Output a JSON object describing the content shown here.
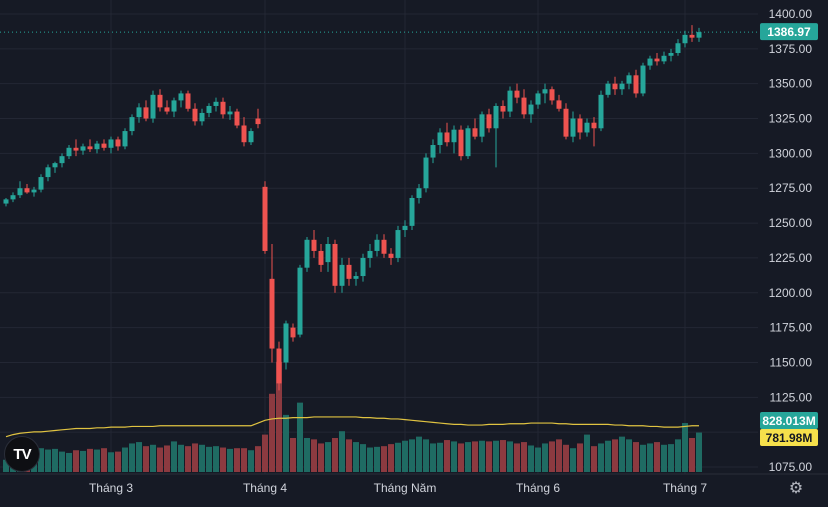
{
  "chart_data": {
    "type": "candlestick",
    "y_ticks": [
      "1400.00",
      "1375.00",
      "1350.00",
      "1325.00",
      "1300.00",
      "1275.00",
      "1250.00",
      "1225.00",
      "1200.00",
      "1175.00",
      "1150.00",
      "1125.00",
      "1100.00",
      "1075.00"
    ],
    "ylim": [
      1070,
      1405
    ],
    "last_price": "1386.97",
    "last_price_value": 1386.97,
    "volume_badge": "828.013M",
    "volume_ma_badge": "781.98M",
    "x_labels": [
      {
        "label": "Tháng 3",
        "index": 15
      },
      {
        "label": "Tháng 4",
        "index": 37
      },
      {
        "label": "Tháng Năm",
        "index": 57
      },
      {
        "label": "Tháng 6",
        "index": 76
      },
      {
        "label": "Tháng 7",
        "index": 97
      }
    ],
    "candles": [
      [
        1264,
        1268,
        1262,
        1267
      ],
      [
        1267,
        1272,
        1265,
        1270
      ],
      [
        1270,
        1280,
        1268,
        1275
      ],
      [
        1275,
        1278,
        1271,
        1272
      ],
      [
        1272,
        1276,
        1269,
        1274
      ],
      [
        1274,
        1285,
        1272,
        1283
      ],
      [
        1283,
        1292,
        1280,
        1290
      ],
      [
        1290,
        1294,
        1286,
        1293
      ],
      [
        1293,
        1300,
        1290,
        1298
      ],
      [
        1298,
        1306,
        1296,
        1304
      ],
      [
        1304,
        1310,
        1298,
        1302
      ],
      [
        1302,
        1307,
        1299,
        1305
      ],
      [
        1305,
        1310,
        1301,
        1303
      ],
      [
        1303,
        1309,
        1300,
        1307
      ],
      [
        1307,
        1310,
        1302,
        1304
      ],
      [
        1304,
        1312,
        1300,
        1310
      ],
      [
        1310,
        1312,
        1302,
        1305
      ],
      [
        1305,
        1318,
        1303,
        1316
      ],
      [
        1316,
        1328,
        1313,
        1326
      ],
      [
        1326,
        1336,
        1322,
        1333
      ],
      [
        1333,
        1338,
        1323,
        1325
      ],
      [
        1325,
        1345,
        1322,
        1342
      ],
      [
        1342,
        1346,
        1330,
        1333
      ],
      [
        1333,
        1338,
        1328,
        1330
      ],
      [
        1330,
        1340,
        1326,
        1338
      ],
      [
        1338,
        1345,
        1333,
        1343
      ],
      [
        1343,
        1345,
        1330,
        1332
      ],
      [
        1332,
        1336,
        1320,
        1323
      ],
      [
        1323,
        1332,
        1320,
        1329
      ],
      [
        1329,
        1336,
        1326,
        1334
      ],
      [
        1334,
        1340,
        1330,
        1337
      ],
      [
        1337,
        1340,
        1325,
        1328
      ],
      [
        1328,
        1334,
        1324,
        1330
      ],
      [
        1330,
        1332,
        1318,
        1320
      ],
      [
        1320,
        1326,
        1305,
        1308
      ],
      [
        1308,
        1318,
        1306,
        1316
      ],
      [
        1325,
        1332,
        1318,
        1321
      ],
      [
        1276,
        1280,
        1228,
        1230
      ],
      [
        1210,
        1235,
        1150,
        1160
      ],
      [
        1160,
        1165,
        1130,
        1135
      ],
      [
        1150,
        1180,
        1145,
        1178
      ],
      [
        1175,
        1178,
        1165,
        1168
      ],
      [
        1170,
        1220,
        1168,
        1218
      ],
      [
        1218,
        1240,
        1215,
        1238
      ],
      [
        1238,
        1245,
        1225,
        1230
      ],
      [
        1230,
        1235,
        1215,
        1220
      ],
      [
        1222,
        1240,
        1215,
        1235
      ],
      [
        1235,
        1238,
        1200,
        1205
      ],
      [
        1205,
        1225,
        1200,
        1220
      ],
      [
        1220,
        1225,
        1205,
        1210
      ],
      [
        1210,
        1215,
        1205,
        1212
      ],
      [
        1212,
        1228,
        1208,
        1225
      ],
      [
        1225,
        1235,
        1218,
        1230
      ],
      [
        1230,
        1242,
        1226,
        1238
      ],
      [
        1238,
        1242,
        1225,
        1228
      ],
      [
        1228,
        1232,
        1220,
        1225
      ],
      [
        1225,
        1248,
        1222,
        1245
      ],
      [
        1245,
        1252,
        1240,
        1248
      ],
      [
        1248,
        1270,
        1245,
        1268
      ],
      [
        1268,
        1278,
        1264,
        1275
      ],
      [
        1275,
        1300,
        1272,
        1297
      ],
      [
        1297,
        1310,
        1293,
        1306
      ],
      [
        1306,
        1318,
        1300,
        1315
      ],
      [
        1315,
        1322,
        1305,
        1308
      ],
      [
        1308,
        1320,
        1300,
        1317
      ],
      [
        1317,
        1320,
        1295,
        1298
      ],
      [
        1298,
        1320,
        1296,
        1318
      ],
      [
        1318,
        1325,
        1310,
        1312
      ],
      [
        1312,
        1330,
        1308,
        1328
      ],
      [
        1328,
        1332,
        1315,
        1318
      ],
      [
        1318,
        1336,
        1290,
        1334
      ],
      [
        1334,
        1338,
        1325,
        1330
      ],
      [
        1330,
        1348,
        1326,
        1345
      ],
      [
        1345,
        1350,
        1336,
        1340
      ],
      [
        1340,
        1346,
        1325,
        1328
      ],
      [
        1328,
        1338,
        1322,
        1335
      ],
      [
        1335,
        1345,
        1332,
        1343
      ],
      [
        1343,
        1350,
        1336,
        1346
      ],
      [
        1346,
        1348,
        1335,
        1338
      ],
      [
        1338,
        1342,
        1330,
        1332
      ],
      [
        1332,
        1336,
        1310,
        1312
      ],
      [
        1312,
        1330,
        1308,
        1325
      ],
      [
        1325,
        1328,
        1310,
        1315
      ],
      [
        1315,
        1325,
        1312,
        1322
      ],
      [
        1322,
        1326,
        1305,
        1318
      ],
      [
        1318,
        1345,
        1316,
        1342
      ],
      [
        1342,
        1352,
        1340,
        1350
      ],
      [
        1350,
        1355,
        1342,
        1346
      ],
      [
        1346,
        1352,
        1342,
        1350
      ],
      [
        1350,
        1358,
        1346,
        1356
      ],
      [
        1356,
        1360,
        1340,
        1343
      ],
      [
        1343,
        1365,
        1341,
        1363
      ],
      [
        1363,
        1370,
        1360,
        1368
      ],
      [
        1368,
        1372,
        1363,
        1366
      ],
      [
        1366,
        1373,
        1364,
        1370
      ],
      [
        1370,
        1375,
        1366,
        1372
      ],
      [
        1372,
        1382,
        1370,
        1379
      ],
      [
        1379,
        1388,
        1376,
        1385
      ],
      [
        1385,
        1392,
        1380,
        1383
      ],
      [
        1383,
        1390,
        1380,
        1387
      ]
    ],
    "volume": [
      18,
      24,
      22,
      30,
      32,
      35,
      33,
      34,
      30,
      28,
      32,
      31,
      34,
      33,
      35,
      29,
      30,
      36,
      42,
      44,
      38,
      40,
      36,
      39,
      45,
      40,
      38,
      42,
      40,
      37,
      38,
      36,
      34,
      35,
      35,
      32,
      38,
      55,
      115,
      162,
      84,
      50,
      102,
      50,
      48,
      42,
      44,
      50,
      60,
      48,
      44,
      41,
      36,
      37,
      38,
      41,
      43,
      46,
      48,
      52,
      48,
      42,
      43,
      47,
      45,
      42,
      44,
      45,
      46,
      45,
      46,
      47,
      45,
      42,
      44,
      39,
      36,
      42,
      45,
      48,
      40,
      35,
      42,
      55,
      38,
      42,
      46,
      48,
      52,
      48,
      44,
      40,
      42,
      44,
      40,
      41,
      48,
      72,
      50,
      58
    ],
    "volume_ma": [
      52,
      55,
      57,
      58,
      59,
      59,
      60,
      61,
      62,
      63,
      64,
      64,
      64,
      65,
      65,
      66,
      66,
      66,
      67,
      67,
      67,
      67,
      68,
      68,
      68,
      68,
      68,
      68,
      68,
      68,
      68,
      68,
      68,
      68,
      68,
      68,
      72,
      76,
      78,
      79,
      79,
      80,
      80,
      80,
      81,
      81,
      81,
      81,
      81,
      81,
      81,
      80,
      80,
      79,
      79,
      78,
      78,
      77,
      76,
      75,
      74,
      73,
      72,
      71,
      70,
      70,
      69,
      69,
      69,
      70,
      70,
      70,
      71,
      71,
      71,
      72,
      72,
      72,
      72,
      71,
      71,
      70,
      70,
      70,
      70,
      70,
      70,
      69,
      69,
      68,
      68,
      68,
      67,
      67,
      66,
      66,
      66,
      67,
      68,
      68
    ]
  }
}
